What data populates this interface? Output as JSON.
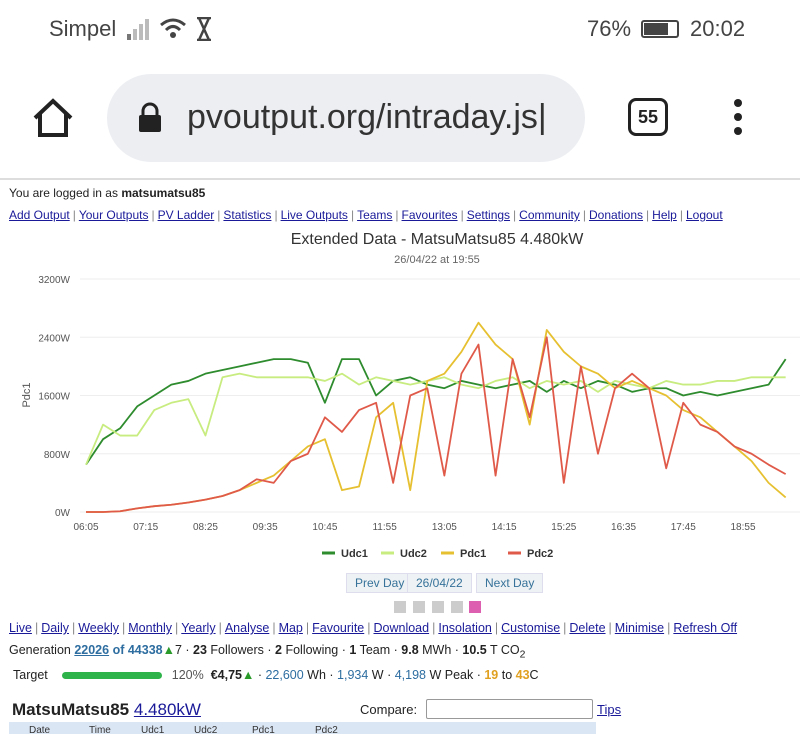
{
  "status": {
    "carrier": "Simpel",
    "battery": "76%",
    "time": "20:02"
  },
  "browser": {
    "url": "pvoutput.org/intraday.js|",
    "tab_count": "55"
  },
  "login": {
    "prefix": "You are logged in as ",
    "user": "matsumatsu85"
  },
  "nav": [
    "Add Output",
    "Your Outputs",
    "PV Ladder",
    "Statistics",
    "Live Outputs",
    "Teams",
    "Favourites",
    "Settings",
    "Community",
    "Donations",
    "Help",
    "Logout"
  ],
  "chart_title": "Extended Data - MatsuMatsu85 4.480kW",
  "chart_subtitle": "26/04/22 at 19:55",
  "chart_data": {
    "type": "line",
    "ylabel": "Pdc1",
    "ylim": [
      0,
      3200
    ],
    "y_ticks": [
      "0W",
      "800W",
      "1600W",
      "2400W",
      "3200W"
    ],
    "y_tick_values": [
      0,
      800,
      1600,
      2400,
      3200
    ],
    "x_ticks": [
      "06:05",
      "07:15",
      "08:25",
      "09:35",
      "10:45",
      "11:55",
      "13:05",
      "14:15",
      "15:25",
      "16:35",
      "17:45",
      "18:55"
    ],
    "x": [
      "06:05",
      "06:25",
      "06:45",
      "07:05",
      "07:25",
      "07:45",
      "08:05",
      "08:25",
      "08:45",
      "09:05",
      "09:25",
      "09:45",
      "10:05",
      "10:25",
      "10:45",
      "11:05",
      "11:25",
      "11:45",
      "12:05",
      "12:25",
      "12:45",
      "13:05",
      "13:25",
      "13:45",
      "14:05",
      "14:25",
      "14:45",
      "15:05",
      "15:25",
      "15:45",
      "16:05",
      "16:25",
      "16:45",
      "17:05",
      "17:25",
      "17:45",
      "18:05",
      "18:25",
      "18:45",
      "19:05",
      "19:25",
      "19:45"
    ],
    "grid": true,
    "legend": "bottom",
    "series": [
      {
        "name": "Udc1",
        "color": "#2e8b2e",
        "values": [
          650,
          1000,
          1150,
          1450,
          1600,
          1750,
          1800,
          1900,
          1950,
          2000,
          2050,
          2100,
          2100,
          2050,
          1500,
          2100,
          2100,
          1600,
          1800,
          1850,
          1750,
          1700,
          1800,
          1750,
          1700,
          1750,
          1800,
          1650,
          1800,
          1700,
          1800,
          1750,
          1650,
          1700,
          1700,
          1600,
          1650,
          1600,
          1650,
          1700,
          1750,
          2100
        ]
      },
      {
        "name": "Udc2",
        "color": "#c8ec80",
        "values": [
          650,
          1200,
          1050,
          1050,
          1400,
          1500,
          1550,
          1050,
          1850,
          1900,
          1850,
          1850,
          1850,
          1850,
          1800,
          1900,
          1750,
          1850,
          1800,
          1750,
          1800,
          1850,
          1750,
          1700,
          1800,
          1850,
          1700,
          1800,
          1750,
          1800,
          1650,
          1800,
          1750,
          1700,
          1800,
          1750,
          1750,
          1800,
          1800,
          1850,
          1850,
          1850
        ]
      },
      {
        "name": "Pdc1",
        "color": "#e6c030",
        "values": [
          0,
          0,
          10,
          50,
          80,
          100,
          130,
          170,
          220,
          300,
          400,
          500,
          700,
          900,
          1000,
          300,
          350,
          1300,
          1500,
          300,
          1800,
          1900,
          2200,
          2600,
          2300,
          2100,
          1200,
          2500,
          2200,
          2000,
          1900,
          1700,
          1800,
          1700,
          1600,
          1400,
          1300,
          1100,
          900,
          700,
          400,
          200
        ]
      },
      {
        "name": "Pdc2",
        "color": "#e05a4a",
        "values": [
          0,
          0,
          10,
          50,
          80,
          100,
          130,
          170,
          220,
          300,
          450,
          400,
          700,
          800,
          1300,
          1100,
          1400,
          1500,
          400,
          1600,
          1700,
          500,
          1900,
          2300,
          500,
          2100,
          1300,
          2400,
          400,
          2000,
          800,
          1700,
          1900,
          1700,
          600,
          1500,
          1200,
          1100,
          900,
          800,
          650,
          520
        ]
      }
    ]
  },
  "day_nav": {
    "prev": "Prev Day",
    "date": "26/04/22",
    "next": "Next Day"
  },
  "links": [
    "Live",
    "Daily",
    "Weekly",
    "Monthly",
    "Yearly",
    "Analyse",
    "Map",
    "Favourite",
    "Download",
    "Insolation",
    "Customise",
    "Delete",
    "Minimise",
    "Refresh Off"
  ],
  "stats": {
    "gen_label": "Generation ",
    "rank": "22026",
    "of": " of 44338",
    "up": "▲",
    "up_n": "7",
    "followers_n": "23",
    "followers": " Followers",
    "following_n": "2",
    "following": " Following",
    "team_n": "1",
    "team": " Team",
    "mwh_n": "9.8",
    "mwh": " MWh",
    "co2_n": "10.5",
    "co2": " T CO",
    "co2_sub": "2"
  },
  "target": {
    "label": "Target",
    "progress_percent": 120,
    "pct": "120%",
    "money": "€4,75",
    "wh_n": "22,600",
    "wh": " Wh",
    "w_n": "1,934",
    "w": " W",
    "peak_n": "4,198",
    "peak": " W Peak",
    "tmin": "19",
    "to": " to ",
    "tmax": "43",
    "c": "C"
  },
  "system": {
    "name": "MatsuMatsu85",
    "size": "4.480kW",
    "compare": "Compare:",
    "compare_value": "",
    "tips": "Tips"
  },
  "table_headers": [
    "Date",
    "Time",
    "Udc1",
    "Udc2",
    "Pdc1",
    "Pdc2"
  ]
}
